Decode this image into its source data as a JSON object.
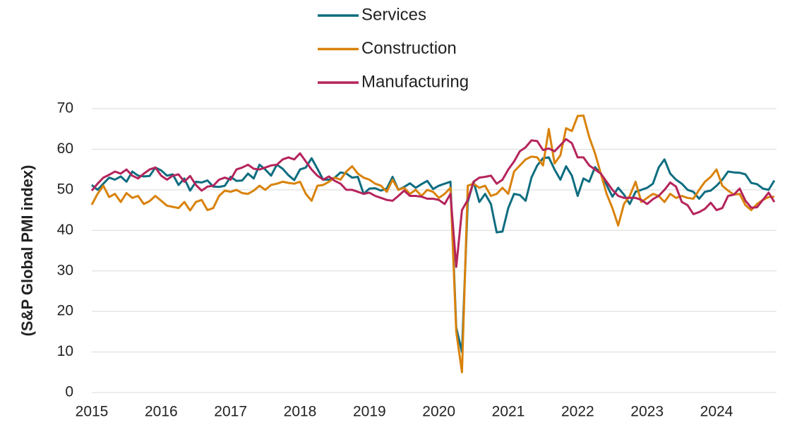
{
  "chart_data": {
    "type": "line",
    "y_label": "(S&P Global PMI index)",
    "categories": [
      "2015",
      null,
      null,
      null,
      null,
      null,
      null,
      null,
      null,
      null,
      null,
      null,
      "2016",
      null,
      null,
      null,
      null,
      null,
      null,
      null,
      null,
      null,
      null,
      null,
      "2017",
      null,
      null,
      null,
      null,
      null,
      null,
      null,
      null,
      null,
      null,
      null,
      "2018",
      null,
      null,
      null,
      null,
      null,
      null,
      null,
      null,
      null,
      null,
      null,
      "2019",
      null,
      null,
      null,
      null,
      null,
      null,
      null,
      null,
      null,
      null,
      null,
      "2020",
      null,
      null,
      null,
      null,
      null,
      null,
      null,
      null,
      null,
      null,
      null,
      "2021",
      null,
      null,
      null,
      null,
      null,
      null,
      null,
      null,
      null,
      null,
      null,
      "2022",
      null,
      null,
      null,
      null,
      null,
      null,
      null,
      null,
      null,
      null,
      null,
      "2023",
      null,
      null,
      null,
      null,
      null,
      null,
      null,
      null,
      null,
      null,
      null,
      "2024",
      null,
      null,
      null,
      null,
      null,
      null,
      null,
      null,
      null,
      null
    ],
    "series": [
      {
        "name": "Services",
        "color": "#0e6d80",
        "values": [
          51.2,
          50,
          51.5,
          53,
          52.5,
          53.3,
          52,
          54.5,
          53.5,
          53.3,
          53.4,
          55.5,
          54.8,
          53.5,
          53.8,
          51.2,
          52.8,
          49.8,
          52,
          51.8,
          52.3,
          50.8,
          50.7,
          51,
          53.2,
          52.2,
          52.3,
          54,
          52.8,
          56.2,
          55,
          53.5,
          56.2,
          55.2,
          53.6,
          52.4,
          55,
          55.5,
          57.8,
          55.2,
          52.5,
          52.5,
          53,
          54.3,
          54,
          53,
          53.2,
          49,
          50.3,
          50.4,
          49.8,
          50.3,
          53.2,
          50,
          50.7,
          51.6,
          50.5,
          51.4,
          52.2,
          50.2,
          51,
          51.5,
          52,
          16,
          10,
          47,
          52,
          47,
          49,
          46.5,
          39.5,
          39.7,
          45.5,
          49,
          48.7,
          47.3,
          53,
          56,
          57.8,
          58,
          55,
          52.5,
          55.8,
          53.5,
          48.5,
          52.8,
          52,
          55.6,
          54,
          51.2,
          48.3,
          50.5,
          48.8,
          46.5,
          49.5,
          50,
          50.5,
          51.5,
          55.5,
          57.5,
          54,
          52.5,
          51.5,
          50,
          49.5,
          47.8,
          49.5,
          49.8,
          51,
          52.5,
          54.5,
          54.3,
          54.2,
          53.8,
          51.7,
          51.4,
          50.3,
          50,
          52.3
        ]
      },
      {
        "name": "Construction",
        "color": "#d9820b",
        "values": [
          46.3,
          49,
          51,
          48.2,
          49,
          47,
          49.2,
          48,
          48.5,
          46.5,
          47.2,
          48.5,
          47.3,
          46.1,
          45.8,
          45.5,
          47,
          44.9,
          47,
          47.5,
          45,
          45.5,
          48.5,
          49.8,
          49.5,
          50,
          49.2,
          49,
          49.8,
          51,
          50,
          51.2,
          51.5,
          52,
          51.7,
          51.5,
          52,
          49,
          47.3,
          51,
          51.2,
          52,
          53,
          52.5,
          54.5,
          55.8,
          54,
          53,
          52.5,
          51.5,
          51,
          49.5,
          52.5,
          50,
          50.5,
          49,
          50,
          48.5,
          50,
          49.5,
          48,
          49,
          50.5,
          15,
          5,
          51,
          51.5,
          50.5,
          51,
          48.5,
          49,
          50.5,
          49,
          54.5,
          56,
          57.5,
          58.2,
          58,
          56,
          65,
          56.5,
          58.5,
          65.2,
          64.5,
          68.2,
          68.3,
          63,
          59,
          54,
          49,
          45.5,
          41.2,
          46.5,
          48.5,
          52,
          47,
          48,
          49,
          48.5,
          47,
          49,
          48,
          48.5,
          48,
          47.8,
          50,
          52,
          53.2,
          55,
          51,
          49.8,
          48.8,
          49,
          46.2,
          45,
          46.5,
          47.5,
          48.2,
          48.3
        ]
      },
      {
        "name": "Manufacturing",
        "color": "#b5245c",
        "values": [
          49.8,
          51.5,
          53,
          53.7,
          54.5,
          54,
          55,
          53.5,
          52.8,
          54,
          55,
          55.5,
          53.5,
          52.5,
          53.5,
          53.8,
          52,
          53.4,
          51.2,
          49.8,
          50.8,
          51,
          52.5,
          53,
          52.5,
          55,
          55.5,
          56.2,
          55.2,
          55,
          55.5,
          56,
          56.2,
          57.5,
          58,
          57.5,
          59,
          57,
          55,
          53.5,
          52.5,
          53.3,
          52.2,
          51.5,
          50,
          50,
          49.5,
          49,
          49.3,
          48.5,
          48,
          47.5,
          47.3,
          48.5,
          49.8,
          48.5,
          48.5,
          48.3,
          47.8,
          47.8,
          47.5,
          46.5,
          49,
          31,
          45,
          47.5,
          52,
          53,
          53.2,
          53.5,
          51.5,
          52.5,
          55,
          57,
          59.5,
          60.5,
          62.2,
          62,
          59.8,
          60.2,
          59.5,
          61,
          62.5,
          61.5,
          58,
          58,
          56,
          55,
          54,
          52,
          50,
          48.5,
          48,
          48,
          48,
          47.5,
          46.5,
          47.7,
          48.5,
          50,
          51.8,
          50.8,
          47,
          46.2,
          44,
          44.5,
          45.3,
          46.8,
          45,
          45.5,
          48.5,
          48.8,
          50.3,
          47.3,
          45.6,
          45.7,
          47.5,
          49.3,
          47
        ]
      }
    ],
    "ylim": [
      0,
      70
    ],
    "yticks": [
      0,
      10,
      20,
      30,
      40,
      50,
      60,
      70
    ],
    "grid": true,
    "legend": "top"
  }
}
